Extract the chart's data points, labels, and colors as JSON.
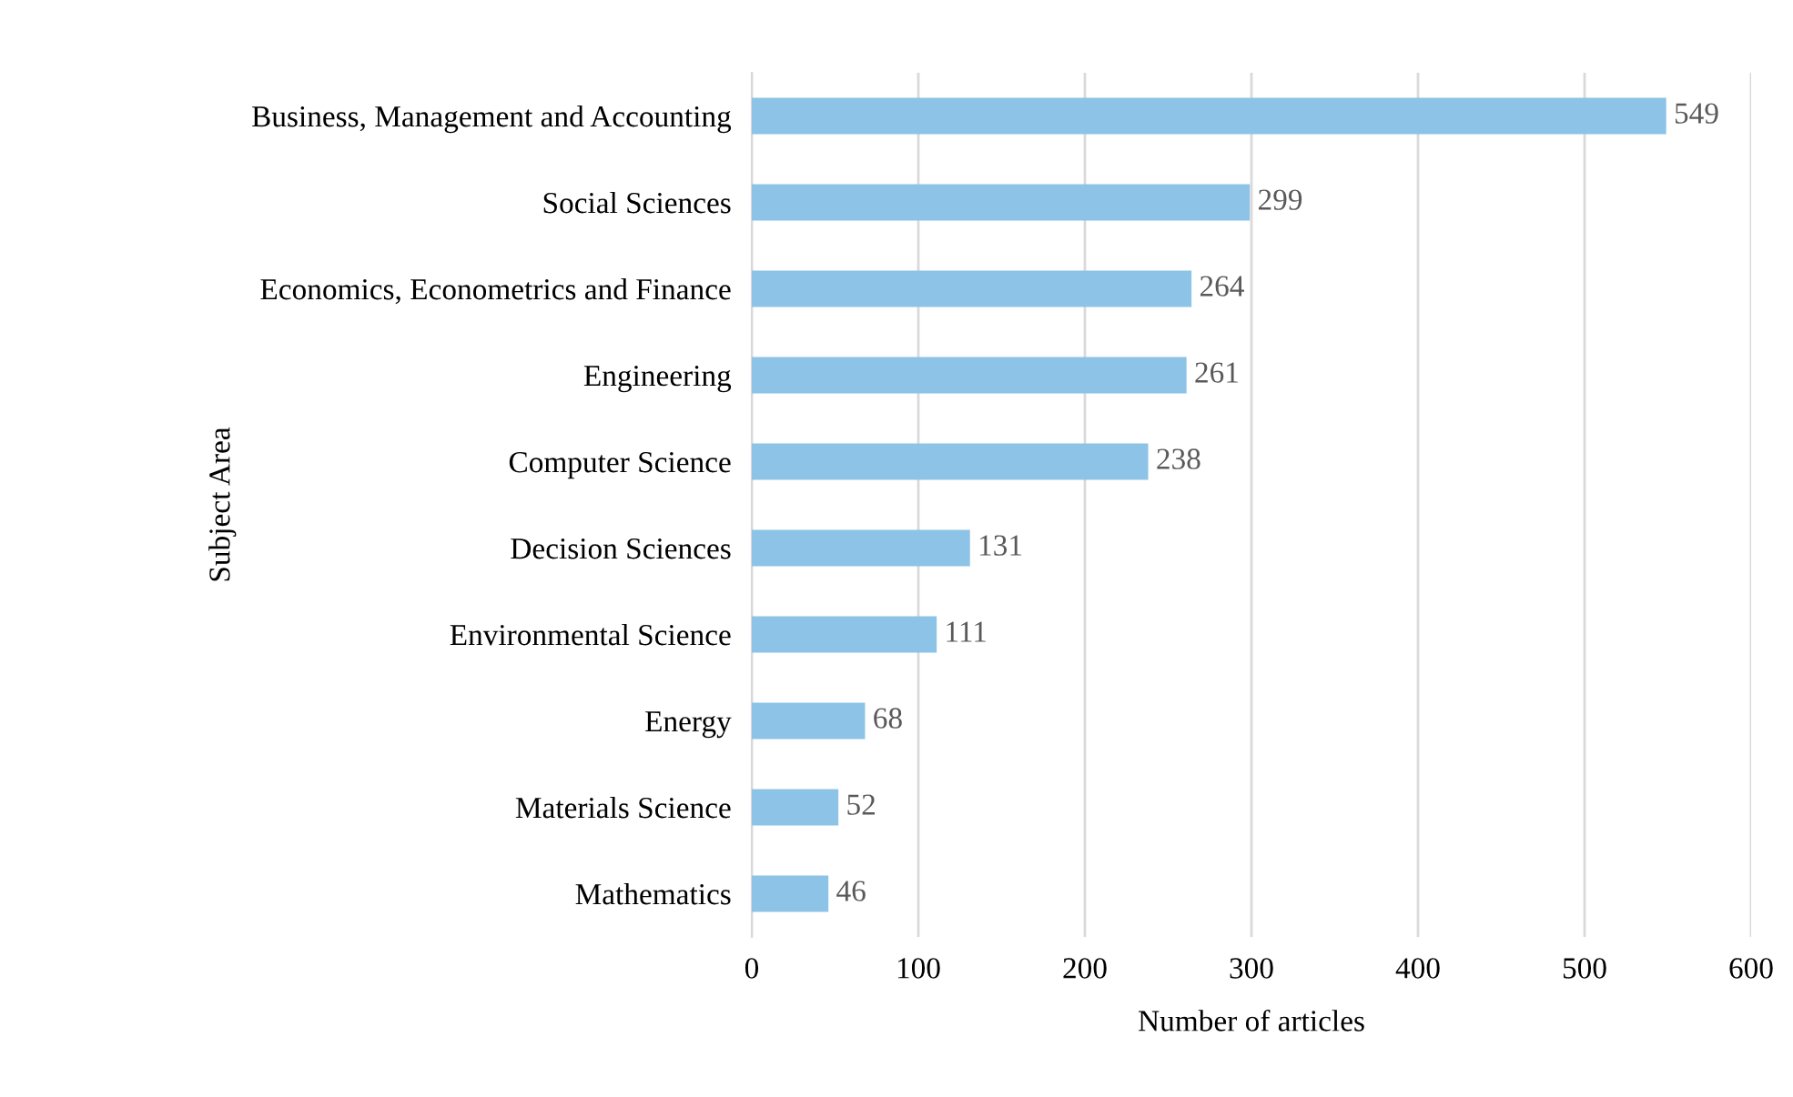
{
  "chart_data": {
    "type": "bar",
    "orientation": "horizontal",
    "xlabel": "Number of articles",
    "ylabel": "Subject Area",
    "categories": [
      "Business, Management and Accounting",
      "Social Sciences",
      "Economics, Econometrics and Finance",
      "Engineering",
      "Computer Science",
      "Decision Sciences",
      "Environmental Science",
      "Energy",
      "Materials Science",
      "Mathematics"
    ],
    "values": [
      549,
      299,
      264,
      261,
      238,
      131,
      111,
      68,
      52,
      46
    ],
    "color": "#8cc3e6",
    "xlim": [
      0,
      600
    ],
    "xticks": [
      0,
      100,
      200,
      300,
      400,
      500,
      600
    ],
    "grid": "x",
    "data_labels": true
  }
}
